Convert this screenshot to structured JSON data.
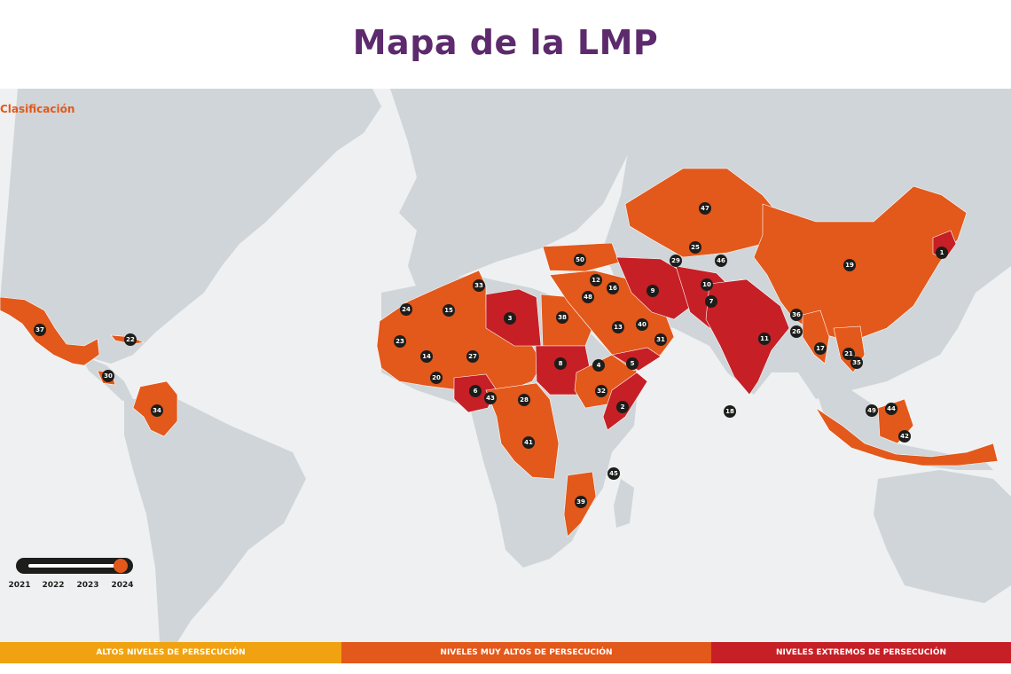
{
  "title": "Mapa de la LMP",
  "colors": {
    "title": "#5c2a6d",
    "land": "#cfd5d8",
    "ocean": "#eef0f1",
    "high": "#f0a210",
    "very_high": "#e3581b",
    "extreme": "#c61f26",
    "marker": "#1d1d1b"
  },
  "map": {
    "classification_label": "Clasificación",
    "rank_markers": [
      "1",
      "2",
      "3",
      "4",
      "5",
      "6",
      "7",
      "8",
      "9",
      "10",
      "11",
      "12",
      "13",
      "14",
      "15",
      "16",
      "17",
      "18",
      "19",
      "20",
      "21",
      "22",
      "23",
      "24",
      "25",
      "26",
      "27",
      "28",
      "29",
      "30",
      "31",
      "32",
      "33",
      "34",
      "35",
      "36",
      "37",
      "38",
      "39",
      "40",
      "41",
      "42",
      "43",
      "44",
      "45",
      "46",
      "47",
      "48",
      "49",
      "50"
    ]
  },
  "timeline": {
    "years": [
      "2021",
      "2022",
      "2023",
      "2024"
    ],
    "selected": "2024"
  },
  "legend": [
    {
      "label": "ALTOS NIVELES DE PERSECUCIÓN",
      "color": "#f0a210"
    },
    {
      "label": "NIVELES MUY ALTOS DE PERSECUCIÓN",
      "color": "#e3581b"
    },
    {
      "label": "NIVELES EXTREMOS DE PERSECUCIÓN",
      "color": "#c61f26"
    }
  ]
}
